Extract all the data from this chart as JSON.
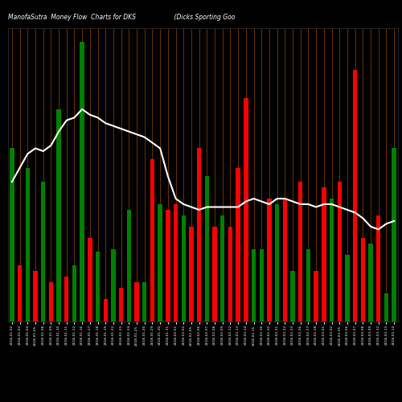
{
  "title": "ManofaSutra  Money Flow  Charts for DKS                    (Dicks Sporting Goo",
  "background_color": "#000000",
  "line_color": "#ffffff",
  "grid_color": "#6b3300",
  "bar_values": [
    0.62,
    0.2,
    0.55,
    0.18,
    0.5,
    0.14,
    0.76,
    0.16,
    0.2,
    1.0,
    0.3,
    0.25,
    0.08,
    0.26,
    0.12,
    0.4,
    0.14,
    0.14,
    0.58,
    0.42,
    0.4,
    0.42,
    0.38,
    0.34,
    0.62,
    0.52,
    0.34,
    0.38,
    0.34,
    0.55,
    0.8,
    0.26,
    0.26,
    0.44,
    0.42,
    0.44,
    0.18,
    0.5,
    0.26,
    0.18,
    0.48,
    0.44,
    0.5,
    0.24,
    0.9,
    0.3,
    0.28,
    0.38,
    0.1,
    0.62
  ],
  "bar_colors": [
    "green",
    "red",
    "green",
    "red",
    "green",
    "red",
    "green",
    "red",
    "green",
    "green",
    "red",
    "green",
    "red",
    "green",
    "red",
    "green",
    "red",
    "green",
    "red",
    "green",
    "red",
    "red",
    "green",
    "red",
    "red",
    "green",
    "red",
    "green",
    "red",
    "red",
    "red",
    "green",
    "green",
    "red",
    "green",
    "red",
    "green",
    "red",
    "green",
    "red",
    "red",
    "green",
    "red",
    "green",
    "red",
    "red",
    "green",
    "red",
    "green",
    "green"
  ],
  "line_values": [
    0.5,
    0.55,
    0.6,
    0.62,
    0.61,
    0.63,
    0.68,
    0.72,
    0.73,
    0.76,
    0.74,
    0.73,
    0.71,
    0.7,
    0.69,
    0.68,
    0.67,
    0.66,
    0.64,
    0.62,
    0.52,
    0.44,
    0.42,
    0.41,
    0.4,
    0.41,
    0.41,
    0.41,
    0.41,
    0.41,
    0.43,
    0.44,
    0.43,
    0.42,
    0.44,
    0.44,
    0.43,
    0.42,
    0.42,
    0.41,
    0.42,
    0.42,
    0.41,
    0.4,
    0.39,
    0.37,
    0.34,
    0.33,
    0.35,
    0.36
  ],
  "xlabels": [
    "2018-01-02",
    "2018-01-03",
    "2018-01-04",
    "2018-01-05",
    "2018-01-08",
    "2018-01-09",
    "2018-01-10",
    "2018-01-11",
    "2018-01-12",
    "2018-01-16",
    "2018-01-17",
    "2018-01-18",
    "2018-01-19",
    "2018-01-22",
    "2018-01-23",
    "2018-01-24",
    "2018-01-25",
    "2018-01-26",
    "2018-01-29",
    "2018-01-30",
    "2018-01-31",
    "2018-02-01",
    "2018-02-02",
    "2018-02-05",
    "2018-02-06",
    "2018-02-07",
    "2018-02-08",
    "2018-02-09",
    "2018-02-12",
    "2018-02-13",
    "2018-02-14",
    "2018-02-15",
    "2018-02-16",
    "2018-02-20",
    "2018-02-21",
    "2018-02-22",
    "2018-02-23",
    "2018-02-26",
    "2018-02-27",
    "2018-02-28",
    "2018-03-01",
    "2018-03-02",
    "2018-03-05",
    "2018-03-06",
    "2018-03-07",
    "2018-03-08",
    "2018-03-09",
    "2018-03-12",
    "2018-03-13",
    "2018-03-14"
  ],
  "ylim": [
    0,
    1.05
  ],
  "bar_width": 0.55
}
